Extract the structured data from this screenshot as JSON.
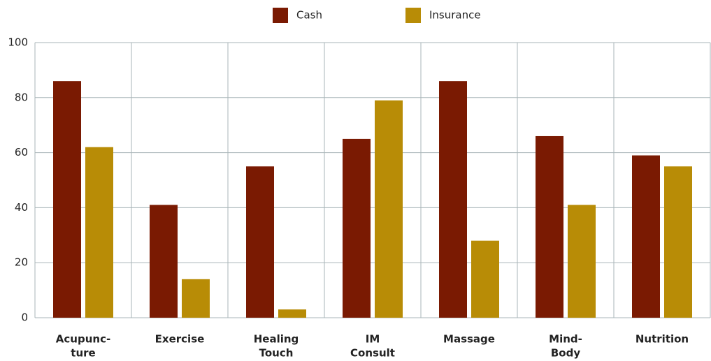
{
  "chart_data": {
    "type": "bar",
    "categories": [
      [
        "Acupunc-",
        "ture"
      ],
      [
        "Exercise"
      ],
      [
        "Healing",
        "Touch"
      ],
      [
        "IM",
        "Consult"
      ],
      [
        "Massage"
      ],
      [
        "Mind-",
        "Body"
      ],
      [
        "Nutrition"
      ]
    ],
    "series": [
      {
        "name": "Cash",
        "color": "#7a1a02",
        "values": [
          86,
          41,
          55,
          65,
          86,
          66,
          59
        ]
      },
      {
        "name": "Insurance",
        "color": "#b88c06",
        "values": [
          62,
          14,
          3,
          79,
          28,
          41,
          55
        ]
      }
    ],
    "ylim": [
      0,
      100
    ],
    "yticks": [
      0,
      20,
      40,
      60,
      80,
      100
    ],
    "grid": true,
    "legend": "top"
  }
}
